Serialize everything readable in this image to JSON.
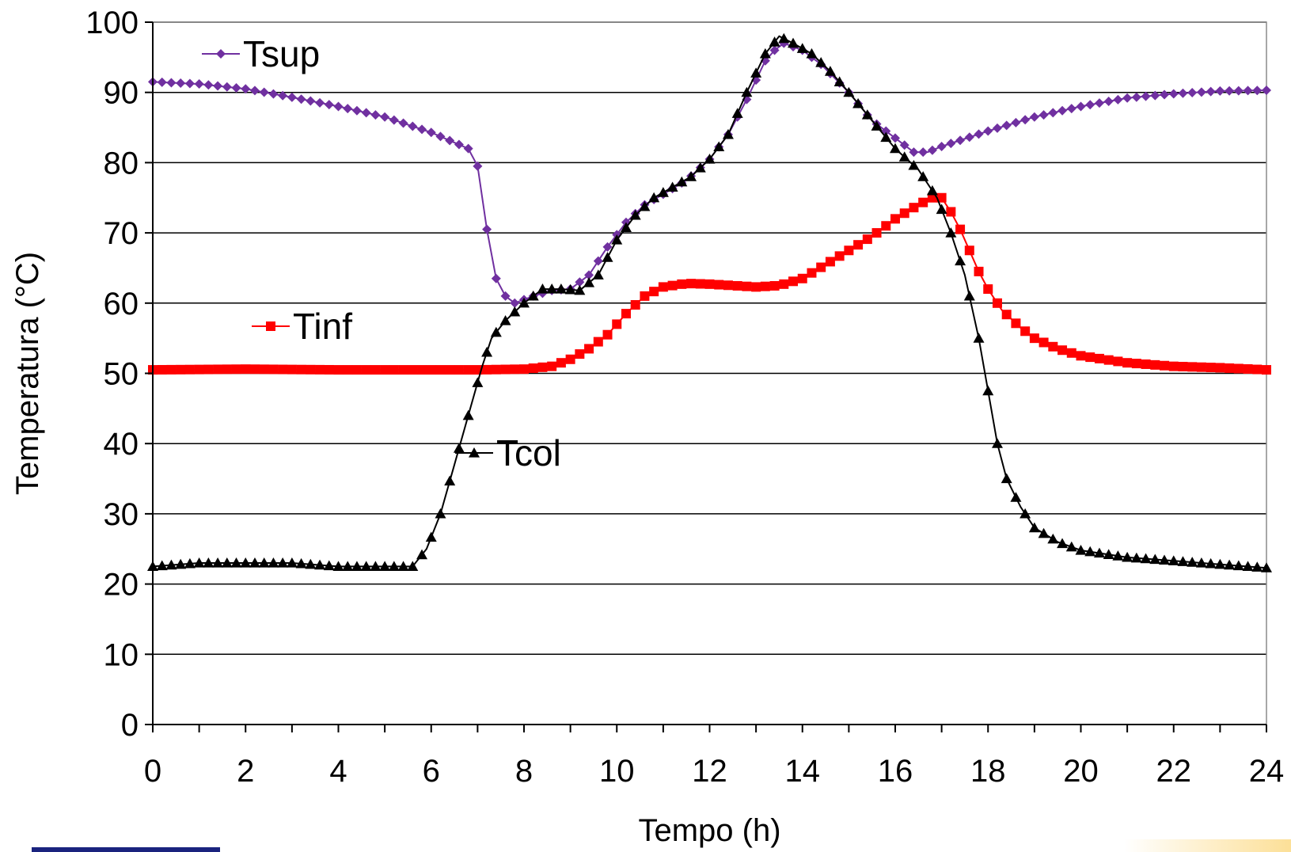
{
  "chart_data": {
    "type": "line",
    "title": "",
    "xlabel": "Tempo (h)",
    "ylabel": "Temperatura (°C)",
    "xlim": [
      0,
      24
    ],
    "ylim": [
      0,
      100
    ],
    "xticks": [
      0,
      2,
      4,
      6,
      8,
      10,
      12,
      14,
      16,
      18,
      20,
      22,
      24
    ],
    "yticks": [
      0,
      10,
      20,
      30,
      40,
      50,
      60,
      70,
      80,
      90,
      100
    ],
    "grid": "horizontal",
    "series": [
      {
        "name": "Tsup",
        "color": "#7030a0",
        "marker": "diamond",
        "points": [
          [
            0,
            91.5
          ],
          [
            1,
            91.2
          ],
          [
            2,
            90.5
          ],
          [
            3,
            89.3
          ],
          [
            4,
            88.0
          ],
          [
            5,
            86.5
          ],
          [
            6,
            84.3
          ],
          [
            6.8,
            82.0
          ],
          [
            7.0,
            79.5
          ],
          [
            7.2,
            70.5
          ],
          [
            7.4,
            63.5
          ],
          [
            7.6,
            61.0
          ],
          [
            7.8,
            60.0
          ],
          [
            8.2,
            61.0
          ],
          [
            8.6,
            61.8
          ],
          [
            9.0,
            62.0
          ],
          [
            9.4,
            64.0
          ],
          [
            9.8,
            68.0
          ],
          [
            10.2,
            71.5
          ],
          [
            10.6,
            74.0
          ],
          [
            11,
            75.5
          ],
          [
            11.5,
            77.5
          ],
          [
            12,
            80.5
          ],
          [
            12.4,
            84.0
          ],
          [
            12.8,
            89.0
          ],
          [
            13.2,
            94.5
          ],
          [
            13.4,
            96.0
          ],
          [
            13.6,
            97.0
          ],
          [
            14.0,
            96.0
          ],
          [
            14.4,
            94.0
          ],
          [
            15,
            90.0
          ],
          [
            15.5,
            86.0
          ],
          [
            16,
            83.5
          ],
          [
            16.4,
            81.5
          ],
          [
            16.7,
            81.5
          ],
          [
            17,
            82.3
          ],
          [
            18,
            84.5
          ],
          [
            19,
            86.5
          ],
          [
            20,
            88.0
          ],
          [
            21,
            89.2
          ],
          [
            22,
            89.8
          ],
          [
            23,
            90.2
          ],
          [
            24,
            90.3
          ]
        ]
      },
      {
        "name": "Tinf",
        "color": "#ff0000",
        "marker": "square",
        "points": [
          [
            0,
            50.5
          ],
          [
            2,
            50.6
          ],
          [
            4,
            50.5
          ],
          [
            6,
            50.5
          ],
          [
            7,
            50.5
          ],
          [
            8,
            50.6
          ],
          [
            8.6,
            51.0
          ],
          [
            9,
            52.0
          ],
          [
            9.4,
            53.5
          ],
          [
            9.8,
            55.5
          ],
          [
            10.2,
            58.5
          ],
          [
            10.6,
            61.0
          ],
          [
            11,
            62.3
          ],
          [
            11.5,
            62.8
          ],
          [
            12,
            62.7
          ],
          [
            12.5,
            62.5
          ],
          [
            13,
            62.3
          ],
          [
            13.5,
            62.5
          ],
          [
            14,
            63.5
          ],
          [
            14.5,
            65.5
          ],
          [
            15,
            67.5
          ],
          [
            15.5,
            69.5
          ],
          [
            16,
            72.0
          ],
          [
            16.5,
            74.0
          ],
          [
            16.8,
            75.0
          ],
          [
            17,
            75.0
          ],
          [
            17.2,
            73.0
          ],
          [
            17.4,
            70.5
          ],
          [
            17.6,
            67.5
          ],
          [
            17.8,
            64.5
          ],
          [
            18,
            62.0
          ],
          [
            18.3,
            59.0
          ],
          [
            18.7,
            56.5
          ],
          [
            19,
            55.0
          ],
          [
            19.5,
            53.5
          ],
          [
            20,
            52.5
          ],
          [
            21,
            51.5
          ],
          [
            22,
            51.0
          ],
          [
            23,
            50.8
          ],
          [
            24,
            50.5
          ]
        ]
      },
      {
        "name": "Tcol",
        "color": "#000000",
        "marker": "triangle",
        "points": [
          [
            0,
            22.5
          ],
          [
            1,
            23.0
          ],
          [
            2,
            23.0
          ],
          [
            3,
            23.0
          ],
          [
            4,
            22.5
          ],
          [
            5,
            22.5
          ],
          [
            5.6,
            22.5
          ],
          [
            5.9,
            25.0
          ],
          [
            6.2,
            30.0
          ],
          [
            6.5,
            37.0
          ],
          [
            6.8,
            44.0
          ],
          [
            7.1,
            51.0
          ],
          [
            7.3,
            55.0
          ],
          [
            7.6,
            57.5
          ],
          [
            8.0,
            60.0
          ],
          [
            8.4,
            62.0
          ],
          [
            8.8,
            62.0
          ],
          [
            9.2,
            61.8
          ],
          [
            9.6,
            64.0
          ],
          [
            10.0,
            69.0
          ],
          [
            10.4,
            72.5
          ],
          [
            10.8,
            75.0
          ],
          [
            11.2,
            76.5
          ],
          [
            11.6,
            78.0
          ],
          [
            12.0,
            80.5
          ],
          [
            12.4,
            84.0
          ],
          [
            12.8,
            90.0
          ],
          [
            13.2,
            95.5
          ],
          [
            13.5,
            98.0
          ],
          [
            13.8,
            97.0
          ],
          [
            14.2,
            95.5
          ],
          [
            14.6,
            93.0
          ],
          [
            15.0,
            90.0
          ],
          [
            15.5,
            86.0
          ],
          [
            16.0,
            82.0
          ],
          [
            16.5,
            79.0
          ],
          [
            16.9,
            75.0
          ],
          [
            17.2,
            70.0
          ],
          [
            17.5,
            64.0
          ],
          [
            17.8,
            55.0
          ],
          [
            18.0,
            47.5
          ],
          [
            18.2,
            40.0
          ],
          [
            18.4,
            35.0
          ],
          [
            18.7,
            31.0
          ],
          [
            19.0,
            28.0
          ],
          [
            19.5,
            26.0
          ],
          [
            20,
            24.8
          ],
          [
            21,
            23.8
          ],
          [
            22,
            23.3
          ],
          [
            23,
            22.8
          ],
          [
            24,
            22.3
          ]
        ]
      }
    ],
    "legend_labels": [
      {
        "text": "Tsup",
        "series": "Tsup"
      },
      {
        "text": "Tinf",
        "series": "Tinf"
      },
      {
        "text": "Tcol",
        "series": "Tcol"
      }
    ]
  }
}
